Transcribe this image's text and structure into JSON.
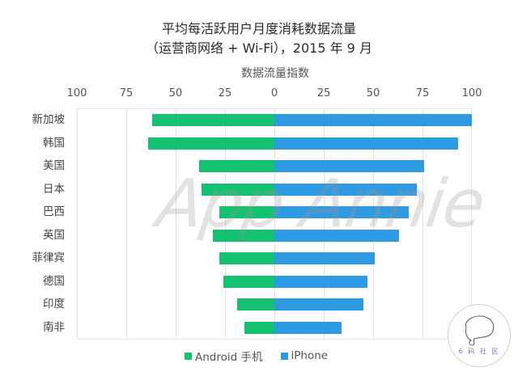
{
  "title_line1": "平均每活跃用户月度消耗数据流量",
  "title_line2": "（运营商网络 + Wi-Fi），2015 年 9 月",
  "axis_title": "数据流量指数",
  "ticks": [
    "100",
    "75",
    "50",
    "25",
    "0",
    "25",
    "50",
    "75",
    "100"
  ],
  "categories": [
    "新加坡",
    "韩国",
    "美国",
    "日本",
    "巴西",
    "英国",
    "菲律宾",
    "德国",
    "印度",
    "南非"
  ],
  "legend": {
    "android": "Android 手机",
    "iphone": "iPhone"
  },
  "colors": {
    "android": "#12c270",
    "iphone": "#2e9ae2"
  },
  "watermark": "App Annie",
  "logo_text": "6 码 社 区",
  "chart_data": {
    "type": "bar",
    "orientation": "horizontal-diverging",
    "title": "平均每活跃用户月度消耗数据流量（运营商网络 + Wi-Fi），2015 年 9 月",
    "xlabel": "数据流量指数",
    "ylabel": "",
    "xlim": [
      -100,
      100
    ],
    "x_tick_labels": [
      "100",
      "75",
      "50",
      "25",
      "0",
      "25",
      "50",
      "75",
      "100"
    ],
    "grid": true,
    "legend_position": "bottom",
    "categories": [
      "新加坡",
      "韩国",
      "美国",
      "日本",
      "巴西",
      "英国",
      "菲律宾",
      "德国",
      "印度",
      "南非"
    ],
    "series": [
      {
        "name": "Android 手机",
        "direction": "left",
        "values": [
          62,
          64,
          38,
          37,
          28,
          31,
          28,
          26,
          19,
          15
        ]
      },
      {
        "name": "iPhone",
        "direction": "right",
        "values": [
          100,
          93,
          76,
          72,
          68,
          63,
          51,
          47,
          45,
          34
        ]
      }
    ]
  }
}
